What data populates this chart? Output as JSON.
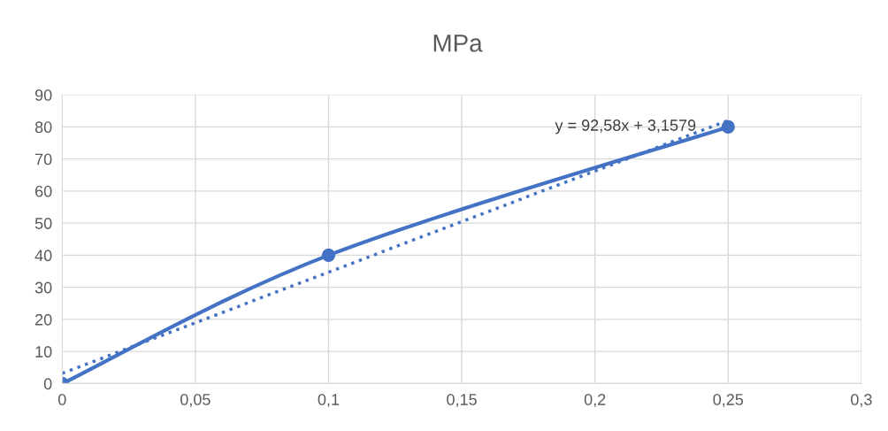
{
  "chart_data": {
    "type": "line",
    "title": "MPa",
    "series": [
      {
        "color": "#4472c4",
        "x": [
          0,
          0.1,
          0.25
        ],
        "values": [
          0,
          40,
          80
        ],
        "marker": "circle",
        "line_style": "solid"
      },
      {
        "color": "#4472c4",
        "x": [
          0,
          0.25
        ],
        "values": [
          3.2,
          82
        ],
        "marker": "none",
        "line_style": "dotted"
      }
    ],
    "annotations": [
      "y = 92,58x + 3,1579"
    ],
    "xlim": [
      0,
      0.3
    ],
    "xticks": [
      0,
      {
        "value": 0.05,
        "label": "0,05"
      },
      {
        "value": 0.1,
        "label": "0,1"
      },
      {
        "value": 0.15,
        "label": "0,15"
      },
      {
        "value": 0.2,
        "label": "0,2"
      },
      {
        "value": 0.25,
        "label": "0,25"
      },
      {
        "value": 0.3,
        "label": "0,3"
      }
    ],
    "ylim": [
      0,
      90
    ],
    "yticks": [
      0,
      10,
      20,
      30,
      40,
      50,
      60,
      70,
      80,
      90
    ],
    "grid": true,
    "legend": false
  }
}
